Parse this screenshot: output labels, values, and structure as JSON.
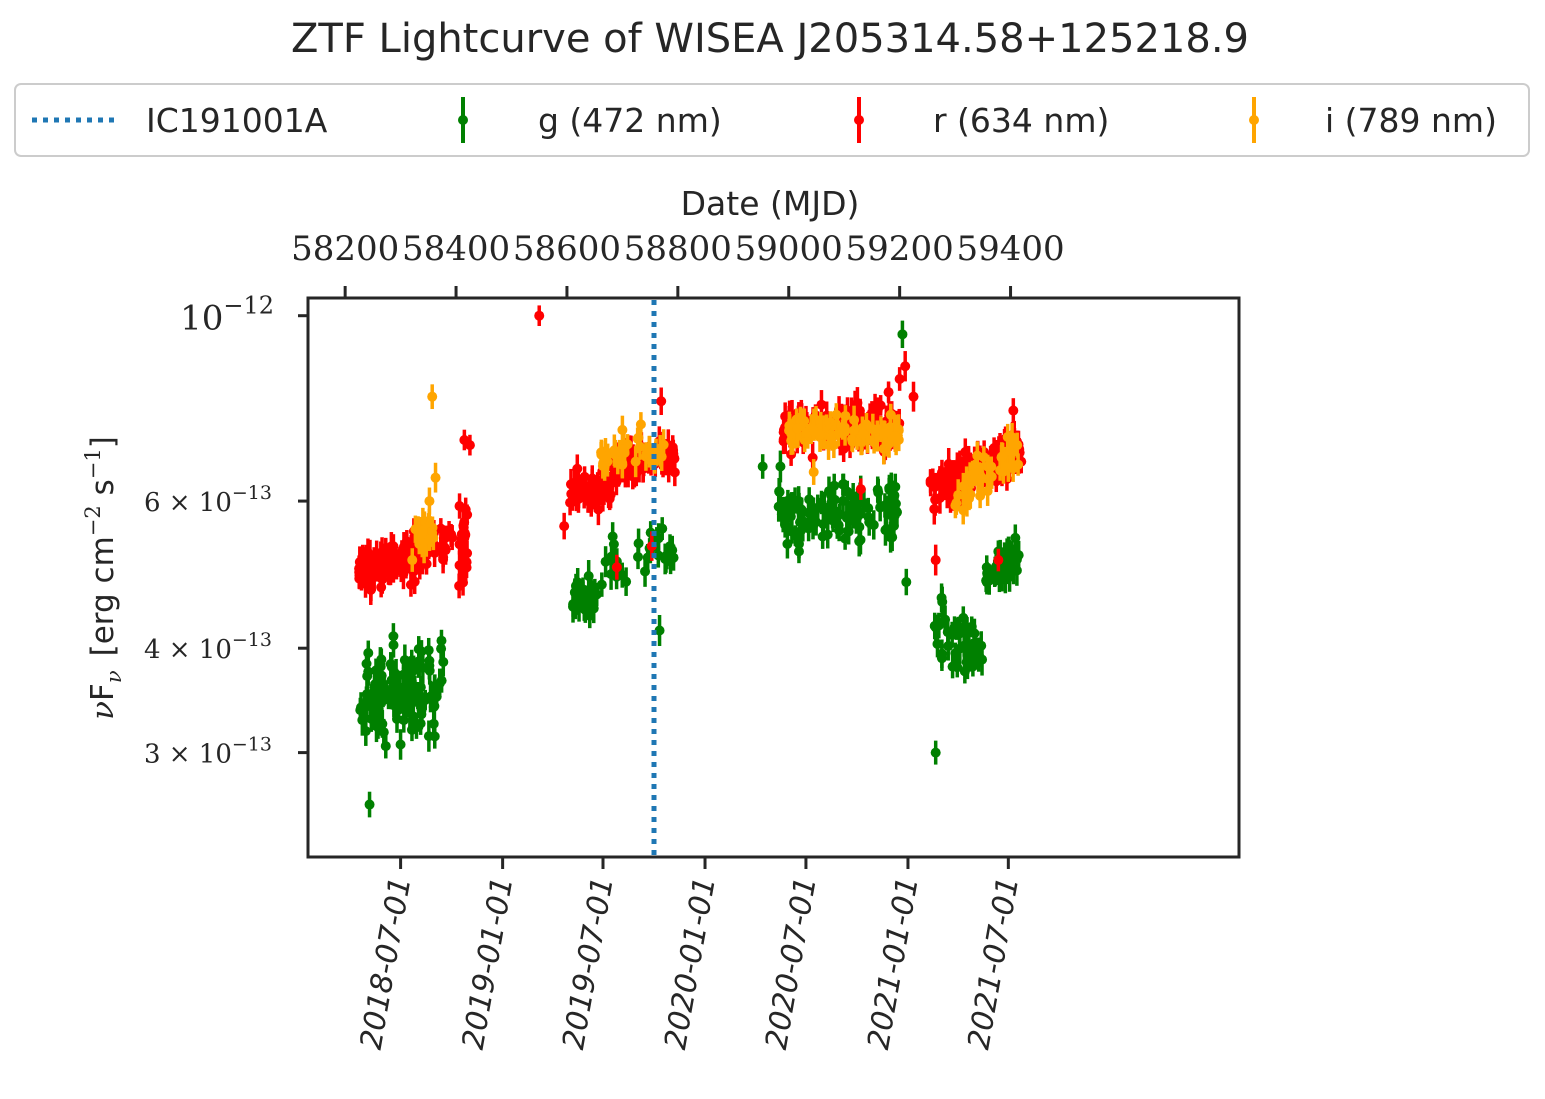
{
  "chart_data": {
    "type": "scatter",
    "title": "ZTF Lightcurve of WISEA J205314.58+125218.9",
    "top_xlabel": "Date (MJD)",
    "ylabel": "νF_ν [erg cm^−2 s^−1]",
    "ylabel_parts": {
      "nu": "ν",
      "F": "F",
      "sub": "ν",
      "bracket_open": "[erg cm",
      "exp1": "−2",
      "s": " s",
      "exp2": "−1",
      "bracket_close": "]"
    },
    "y_scale": "log",
    "ylim": [
      2.25e-13,
      1.05e-12
    ],
    "yticks": [
      {
        "value": 1e-12,
        "mant": "",
        "exp": "−12"
      },
      {
        "value": 6e-13,
        "mant": "6 × ",
        "exp": "−13"
      },
      {
        "value": 4e-13,
        "mant": "4 × ",
        "exp": "−13"
      },
      {
        "value": 3e-13,
        "mant": "3 × ",
        "exp": "−13"
      }
    ],
    "ytick_base": "10",
    "xlim_mjd": [
      58133,
      59812
    ],
    "top_xticks": [
      "58200",
      "58400",
      "58600",
      "58800",
      "59000",
      "59200",
      "59400"
    ],
    "bottom_xticks": [
      {
        "label": "2018-07-01",
        "mjd": 58300
      },
      {
        "label": "2019-01-01",
        "mjd": 58484
      },
      {
        "label": "2019-07-01",
        "mjd": 58665
      },
      {
        "label": "2020-01-01",
        "mjd": 58849
      },
      {
        "label": "2020-07-01",
        "mjd": 59031
      },
      {
        "label": "2021-01-01",
        "mjd": 59215
      },
      {
        "label": "2021-07-01",
        "mjd": 59396
      }
    ],
    "vline": {
      "name": "IC191001A",
      "mjd": 58757,
      "color": "#1f77b4"
    },
    "legend_position": "above plot, single row",
    "series": [
      {
        "name": "g (472 nm)",
        "color": "#008000",
        "segments": [
          {
            "x": [
              58225,
              58365
            ],
            "y_start": 3.5e-13,
            "y_end": 3.6e-13,
            "spread": 0.11,
            "n": 120
          },
          {
            "x": [
              58365,
              58380
            ],
            "y_start": 3.6e-13,
            "y_end": 4e-13,
            "spread": 0.05,
            "n": 6
          },
          {
            "x": [
              58608,
              58650
            ],
            "y_start": 4.6e-13,
            "y_end": 4.6e-13,
            "spread": 0.05,
            "n": 24
          },
          {
            "x": [
              58650,
              58795
            ],
            "y_start": 4.9e-13,
            "y_end": 5.3e-13,
            "spread": 0.06,
            "n": 30
          },
          {
            "x": [
              58980,
              59200
            ],
            "y_start": 5.7e-13,
            "y_end": 5.9e-13,
            "spread": 0.07,
            "n": 110
          },
          {
            "x": [
              59260,
              59350
            ],
            "y_start": 4.2e-13,
            "y_end": 3.9e-13,
            "spread": 0.07,
            "n": 45
          },
          {
            "x": [
              59350,
              59415
            ],
            "y_start": 4.8e-13,
            "y_end": 5.2e-13,
            "spread": 0.05,
            "n": 35
          }
        ],
        "points": [
          [
            58244,
            2.6e-13
          ],
          [
            58751,
            5.5e-13
          ],
          [
            58762,
            5.4e-13
          ],
          [
            58767,
            4.2e-13
          ],
          [
            58786,
            5.2e-13
          ],
          [
            59205,
            9.5e-13
          ],
          [
            59212,
            4.8e-13
          ],
          [
            59265,
            3e-13
          ],
          [
            59390,
            7e-13
          ],
          [
            58953,
            6.6e-13
          ],
          [
            58985,
            6.6e-13
          ]
        ]
      },
      {
        "name": "r (634 nm)",
        "color": "#ff0000",
        "segments": [
          {
            "x": [
              58225,
              58340
            ],
            "y_start": 4.95e-13,
            "y_end": 5.2e-13,
            "spread": 0.05,
            "n": 110
          },
          {
            "x": [
              58340,
              58400
            ],
            "y_start": 5.2e-13,
            "y_end": 5.5e-13,
            "spread": 0.05,
            "n": 22
          },
          {
            "x": [
              58405,
              58420
            ],
            "y_start": 5.3e-13,
            "y_end": 5.3e-13,
            "spread": 0.14,
            "n": 22
          },
          {
            "x": [
              58605,
              58680
            ],
            "y_start": 6.1e-13,
            "y_end": 6.2e-13,
            "spread": 0.04,
            "n": 50
          },
          {
            "x": [
              58680,
              58795
            ],
            "y_start": 6.6e-13,
            "y_end": 6.8e-13,
            "spread": 0.04,
            "n": 70
          },
          {
            "x": [
              58990,
              59200
            ],
            "y_start": 7.3e-13,
            "y_end": 7.4e-13,
            "spread": 0.05,
            "n": 130
          },
          {
            "x": [
              59255,
              59420
            ],
            "y_start": 6.2e-13,
            "y_end": 6.9e-13,
            "spread": 0.05,
            "n": 110
          }
        ],
        "points": [
          [
            58415,
            7.1e-13
          ],
          [
            58425,
            7e-13
          ],
          [
            58550,
            1e-12
          ],
          [
            58595,
            5.6e-13
          ],
          [
            58690,
            5e-13
          ],
          [
            58753,
            5.3e-13
          ],
          [
            58770,
            7.9e-13
          ],
          [
            59210,
            8.7e-13
          ],
          [
            59200,
            8.4e-13
          ],
          [
            59180,
            8.1e-13
          ],
          [
            59225,
            8e-13
          ],
          [
            59130,
            6.2e-13
          ],
          [
            59265,
            5.1e-13
          ],
          [
            59405,
            7.7e-13
          ],
          [
            59378,
            5.1e-13
          ]
        ]
      },
      {
        "name": "i (789 nm)",
        "color": "#ffa500",
        "segments": [
          {
            "x": [
              58325,
              58360
            ],
            "y_start": 5.45e-13,
            "y_end": 5.5e-13,
            "spread": 0.04,
            "n": 24
          },
          {
            "x": [
              58660,
              58780
            ],
            "y_start": 6.8e-13,
            "y_end": 6.9e-13,
            "spread": 0.04,
            "n": 38
          },
          {
            "x": [
              59000,
              59200
            ],
            "y_start": 7.3e-13,
            "y_end": 7.2e-13,
            "spread": 0.04,
            "n": 80
          },
          {
            "x": [
              59300,
              59420
            ],
            "y_start": 6e-13,
            "y_end": 7e-13,
            "spread": 0.04,
            "n": 50
          }
        ],
        "points": [
          [
            58357,
            8e-13
          ],
          [
            58363,
            6.4e-13
          ],
          [
            58352,
            6e-13
          ],
          [
            58321,
            5.1e-13
          ],
          [
            58352,
            5.4e-13
          ],
          [
            58668,
            6.6e-13
          ],
          [
            58700,
            7.3e-13
          ],
          [
            59045,
            6.5e-13
          ],
          [
            59340,
            6.8e-13
          ],
          [
            59412,
            7e-13
          ]
        ]
      }
    ]
  }
}
